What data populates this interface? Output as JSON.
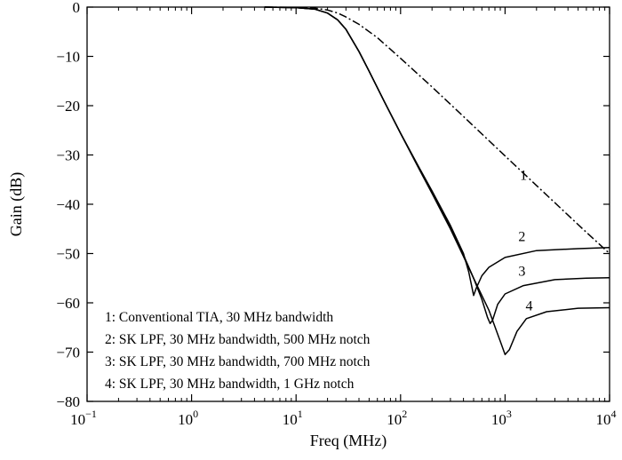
{
  "chart_data": {
    "type": "line",
    "title": "",
    "xlabel": "Freq (MHz)",
    "ylabel": "Gain (dB)",
    "xscale": "log",
    "xlim": [
      0.1,
      10000
    ],
    "ylim": [
      -80,
      0
    ],
    "x_ticks": [
      {
        "value": 0.1,
        "base": "10",
        "exp": "−1"
      },
      {
        "value": 1,
        "base": "10",
        "exp": "0"
      },
      {
        "value": 10,
        "base": "10",
        "exp": "1"
      },
      {
        "value": 100,
        "base": "10",
        "exp": "2"
      },
      {
        "value": 1000,
        "base": "10",
        "exp": "3"
      },
      {
        "value": 10000,
        "base": "10",
        "exp": "4"
      }
    ],
    "y_ticks": [
      {
        "value": 0,
        "label": "0"
      },
      {
        "value": -10,
        "label": "−10"
      },
      {
        "value": -20,
        "label": "−20"
      },
      {
        "value": -30,
        "label": "−30"
      },
      {
        "value": -40,
        "label": "−40"
      },
      {
        "value": -50,
        "label": "−50"
      },
      {
        "value": -60,
        "label": "−60"
      },
      {
        "value": -70,
        "label": "−70"
      },
      {
        "value": -80,
        "label": "−80"
      }
    ],
    "grid": false,
    "legend_placement": "bottom-left",
    "legend": [
      "1: Conventional TIA, 30 MHz bandwidth",
      "2: SK LPF, 30 MHz bandwidth, 500 MHz notch",
      "3: SK LPF, 30 MHz bandwidth, 700 MHz notch",
      "4: SK LPF, 30 MHz bandwidth, 1 GHz notch"
    ],
    "series": [
      {
        "label": "1",
        "style": "dashdot",
        "label_point": [
          1500,
          -35
        ],
        "points": [
          [
            5,
            0
          ],
          [
            10,
            -0.05
          ],
          [
            15,
            -0.2
          ],
          [
            20,
            -0.6
          ],
          [
            25,
            -1.2
          ],
          [
            30,
            -2
          ],
          [
            40,
            -3.5
          ],
          [
            60,
            -6.2
          ],
          [
            100,
            -10.4
          ],
          [
            200,
            -16.2
          ],
          [
            400,
            -22.2
          ],
          [
            1000,
            -30.2
          ],
          [
            2000,
            -36.2
          ],
          [
            4000,
            -42.2
          ],
          [
            6000,
            -45.7
          ],
          [
            10000,
            -50
          ]
        ]
      },
      {
        "label": "2",
        "style": "solid",
        "label_point": [
          1450,
          -47.5
        ],
        "points": [
          [
            5,
            0
          ],
          [
            10,
            -0.1
          ],
          [
            15,
            -0.4
          ],
          [
            20,
            -1.2
          ],
          [
            25,
            -2.6
          ],
          [
            30,
            -4.5
          ],
          [
            40,
            -9
          ],
          [
            50,
            -13
          ],
          [
            70,
            -19.2
          ],
          [
            100,
            -25.6
          ],
          [
            150,
            -32.5
          ],
          [
            200,
            -37.3
          ],
          [
            300,
            -44.3
          ],
          [
            400,
            -50
          ],
          [
            450,
            -53.8
          ],
          [
            500,
            -58.5
          ],
          [
            530,
            -57
          ],
          [
            600,
            -54.5
          ],
          [
            700,
            -52.8
          ],
          [
            1000,
            -50.8
          ],
          [
            2000,
            -49.4
          ],
          [
            5000,
            -49
          ],
          [
            10000,
            -48.8
          ]
        ]
      },
      {
        "label": "3",
        "style": "solid",
        "label_point": [
          1450,
          -54.5
        ],
        "points": [
          [
            5,
            0
          ],
          [
            10,
            -0.1
          ],
          [
            15,
            -0.4
          ],
          [
            20,
            -1.2
          ],
          [
            25,
            -2.6
          ],
          [
            30,
            -4.5
          ],
          [
            40,
            -9
          ],
          [
            50,
            -13
          ],
          [
            70,
            -19.2
          ],
          [
            100,
            -25.6
          ],
          [
            150,
            -32.6
          ],
          [
            200,
            -37.5
          ],
          [
            300,
            -44.8
          ],
          [
            400,
            -50.3
          ],
          [
            500,
            -55
          ],
          [
            600,
            -59.3
          ],
          [
            680,
            -63
          ],
          [
            720,
            -64.2
          ],
          [
            760,
            -63.5
          ],
          [
            850,
            -60.3
          ],
          [
            1000,
            -58.2
          ],
          [
            1500,
            -56.5
          ],
          [
            3000,
            -55.3
          ],
          [
            6000,
            -55
          ],
          [
            10000,
            -54.9
          ]
        ]
      },
      {
        "label": "4",
        "style": "solid",
        "label_point": [
          1700,
          -61.5
        ],
        "points": [
          [
            5,
            0
          ],
          [
            10,
            -0.1
          ],
          [
            15,
            -0.4
          ],
          [
            20,
            -1.2
          ],
          [
            25,
            -2.6
          ],
          [
            30,
            -4.5
          ],
          [
            40,
            -9
          ],
          [
            50,
            -13
          ],
          [
            70,
            -19.2
          ],
          [
            100,
            -25.6
          ],
          [
            150,
            -32.8
          ],
          [
            200,
            -37.8
          ],
          [
            300,
            -45
          ],
          [
            400,
            -50.6
          ],
          [
            500,
            -55
          ],
          [
            700,
            -61.5
          ],
          [
            900,
            -67.8
          ],
          [
            1000,
            -70.5
          ],
          [
            1100,
            -69.5
          ],
          [
            1300,
            -65.8
          ],
          [
            1600,
            -63.2
          ],
          [
            2500,
            -61.8
          ],
          [
            5000,
            -61.1
          ],
          [
            10000,
            -61
          ]
        ]
      }
    ]
  }
}
